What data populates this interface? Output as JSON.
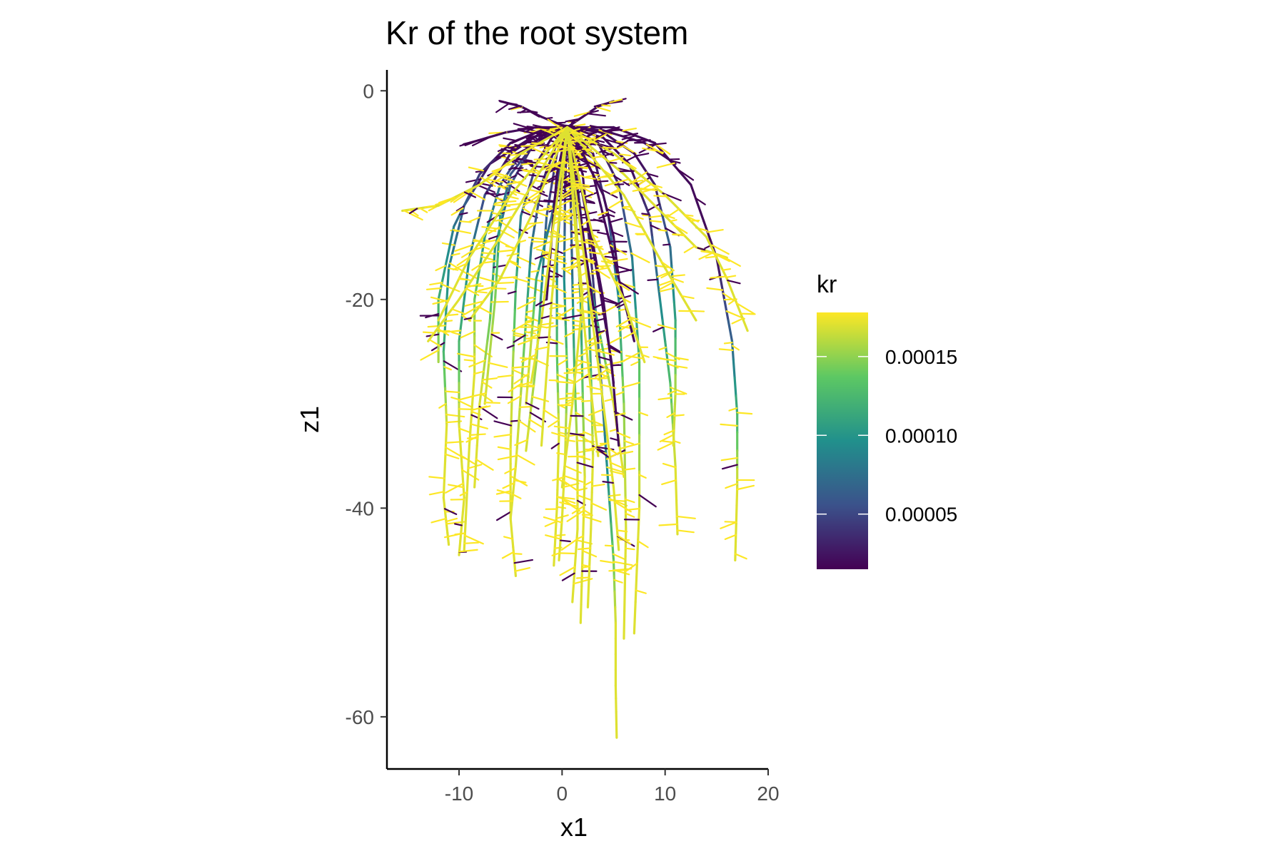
{
  "chart_data": {
    "type": "line",
    "title": "Kr of the root system",
    "xlabel": "x1",
    "ylabel": "z1",
    "xlim": [
      -17,
      20
    ],
    "ylim": [
      -65,
      2
    ],
    "x_ticks": [
      -10,
      0,
      10,
      20
    ],
    "x_tick_labels": [
      "-10",
      "0",
      "10",
      "20"
    ],
    "y_ticks": [
      0,
      -20,
      -40,
      -60
    ],
    "y_tick_labels": [
      "0",
      "-20",
      "-40",
      "-60"
    ],
    "grid": false,
    "color_scale": {
      "name": "kr",
      "palette": "viridis",
      "min": 1.5e-05,
      "max": 0.000178,
      "ticks": [
        5e-05,
        0.0001,
        0.00015
      ],
      "tick_labels": [
        "0.00005",
        "0.00010",
        "0.00015"
      ],
      "colors": [
        "#440154",
        "#3b528b",
        "#21908c",
        "#5dc863",
        "#fde725"
      ]
    },
    "legend": {
      "placement": "right",
      "title": "kr"
    },
    "series": [
      {
        "type": "primary",
        "x": [
          0.5,
          -3,
          -7,
          -9.5,
          -11,
          -11.5,
          -11.2,
          -11.5,
          -11
        ],
        "z": [
          -3.5,
          -4.5,
          -7,
          -11,
          -17,
          -25,
          -32,
          -39,
          -43.5
        ],
        "kr": [
          2e-05,
          2e-05,
          2e-05,
          6e-05,
          9e-05,
          0.00012,
          0.00017,
          0.00017,
          0.00017
        ]
      },
      {
        "type": "primary",
        "x": [
          0.5,
          -2,
          -5,
          -7.5,
          -9,
          -10,
          -10,
          -9.5,
          -10
        ],
        "z": [
          -3.5,
          -4,
          -6,
          -10,
          -16,
          -24,
          -32,
          -39,
          -44.5
        ],
        "kr": [
          2e-05,
          2e-05,
          2e-05,
          5e-05,
          9e-05,
          0.00012,
          0.00017,
          0.00017,
          0.00017
        ]
      },
      {
        "type": "primary",
        "x": [
          0.5,
          -1.5,
          -4,
          -6,
          -7.5,
          -8.5,
          -8.5,
          -9,
          -9.5
        ],
        "z": [
          -3.5,
          -4,
          -6,
          -9,
          -14,
          -20,
          -27,
          -34,
          -44
        ],
        "kr": [
          2e-05,
          2e-05,
          3e-05,
          7e-05,
          0.0001,
          0.00014,
          0.00017,
          0.00017,
          0.00017
        ]
      },
      {
        "type": "primary",
        "x": [
          0.5,
          -1,
          -3,
          -5,
          -6.5,
          -7,
          -8,
          -8.5
        ],
        "z": [
          -3.5,
          -4,
          -5.5,
          -9,
          -15,
          -22,
          -30,
          -38
        ],
        "kr": [
          2e-05,
          2e-05,
          3e-05,
          6e-05,
          0.0001,
          0.00014,
          0.00017,
          0.00017
        ]
      },
      {
        "type": "primary",
        "x": [
          0.5,
          -1,
          -2.5,
          -4,
          -4.5,
          -4.8,
          -5,
          -5,
          -4.5
        ],
        "z": [
          -3.5,
          -4.5,
          -7,
          -12,
          -19,
          -27,
          -34,
          -41,
          -46.5
        ],
        "kr": [
          2e-05,
          2e-05,
          3e-05,
          8e-05,
          0.00012,
          0.00016,
          0.00017,
          0.00017,
          0.00017
        ]
      },
      {
        "type": "primary",
        "x": [
          0.5,
          -0.5,
          -2,
          -3,
          -3.5,
          -4,
          -4.5,
          -5
        ],
        "z": [
          -3.5,
          -5,
          -9,
          -15,
          -22,
          -29,
          -36,
          -41
        ],
        "kr": [
          2e-05,
          2e-05,
          4e-05,
          8e-05,
          0.00013,
          0.00016,
          0.00017,
          0.00017
        ]
      },
      {
        "type": "primary",
        "x": [
          0.5,
          -0.5,
          -1.5,
          -2,
          -2.5,
          -3.5
        ],
        "z": [
          -3.5,
          -6,
          -12,
          -19,
          -26,
          -34.5
        ],
        "kr": [
          2e-05,
          3e-05,
          6e-05,
          0.0001,
          0.00015,
          0.00017
        ]
      },
      {
        "type": "primary",
        "x": [
          0.5,
          0,
          -0.5,
          -0.5,
          -0.3,
          -0.5,
          -0.8
        ],
        "z": [
          -3.5,
          -8,
          -16,
          -25,
          -33,
          -40,
          -45.5
        ],
        "kr": [
          2e-05,
          4e-05,
          8e-05,
          0.00013,
          0.00017,
          0.00017,
          0.00017
        ]
      },
      {
        "type": "primary",
        "x": [
          0.5,
          0.3,
          0.2,
          0.5,
          0.3,
          0,
          -0.3
        ],
        "z": [
          -3.5,
          -9,
          -18,
          -27,
          -35,
          -41,
          -45
        ],
        "kr": [
          2e-05,
          4e-05,
          9e-05,
          0.00014,
          0.00017,
          0.00017,
          0.00017
        ]
      },
      {
        "type": "primary",
        "x": [
          0.5,
          0.8,
          1,
          1.2,
          1.5,
          1.5,
          1
        ],
        "z": [
          -3.5,
          -9,
          -18,
          -27,
          -35,
          -42,
          -49
        ],
        "kr": [
          2e-05,
          4e-05,
          8e-05,
          0.00013,
          0.00017,
          0.00017,
          0.00017
        ]
      },
      {
        "type": "primary",
        "x": [
          0.5,
          1.2,
          1.8,
          2,
          2.2,
          2,
          1.8
        ],
        "z": [
          -3.5,
          -10,
          -20,
          -29,
          -37,
          -44,
          -51
        ],
        "kr": [
          2e-05,
          4e-05,
          0.0001,
          0.00014,
          0.00017,
          0.00017,
          0.00017
        ]
      },
      {
        "type": "primary",
        "x": [
          0.5,
          1.5,
          2.5,
          2.8,
          3,
          2.8,
          2.5
        ],
        "z": [
          -3.5,
          -9,
          -18,
          -27,
          -35,
          -42,
          -49.5
        ],
        "kr": [
          2e-05,
          4e-05,
          8e-05,
          0.00013,
          0.00017,
          0.00017,
          0.00017
        ]
      },
      {
        "type": "primary",
        "x": [
          0.5,
          2,
          3,
          3.8,
          4.5,
          5,
          5.2,
          5.2,
          5.3
        ],
        "z": [
          -3.5,
          -8,
          -18,
          -28,
          -38,
          -45,
          -51,
          -57,
          -62
        ],
        "kr": [
          2e-05,
          2e-05,
          4e-05,
          7e-05,
          0.0001,
          0.00014,
          0.00017,
          0.00017,
          0.00017
        ]
      },
      {
        "type": "primary",
        "x": [
          0.5,
          3,
          4.5,
          5.5,
          6,
          6.2,
          6
        ],
        "z": [
          -3.5,
          -6,
          -12,
          -20,
          -30,
          -42,
          -52.5
        ],
        "kr": [
          2e-05,
          2e-05,
          5e-05,
          0.0001,
          0.00015,
          0.00017,
          0.00017
        ]
      },
      {
        "type": "primary",
        "x": [
          0.5,
          3.5,
          5.5,
          6.8,
          7.5,
          7.5,
          7
        ],
        "z": [
          -3.5,
          -5,
          -9,
          -16,
          -26,
          -40,
          -52
        ],
        "kr": [
          2e-05,
          2e-05,
          4e-05,
          8e-05,
          0.00013,
          0.00017,
          0.00017
        ]
      },
      {
        "type": "primary",
        "x": [
          0.5,
          4,
          6.5,
          8.5,
          9.5,
          10.5,
          11,
          11.2
        ],
        "z": [
          -3.5,
          -4.5,
          -7,
          -12,
          -20,
          -28,
          -36,
          -42.5
        ],
        "kr": [
          2e-05,
          2e-05,
          2e-05,
          4e-05,
          9e-05,
          0.00013,
          0.00017,
          0.00017
        ]
      },
      {
        "type": "primary",
        "x": [
          0.5,
          4,
          7,
          9,
          10.5,
          11,
          11,
          10.8
        ],
        "z": [
          -3.5,
          -4,
          -6,
          -9,
          -15,
          -22,
          -29,
          -34
        ],
        "kr": [
          2e-05,
          2e-05,
          2e-05,
          3e-05,
          7e-05,
          0.00011,
          0.00016,
          0.00017
        ]
      },
      {
        "type": "primary",
        "x": [
          0.5,
          5,
          9,
          12.5,
          15,
          16.5,
          17,
          17,
          16.8
        ],
        "z": [
          -3.5,
          -3.5,
          -5,
          -9,
          -16,
          -24,
          -31,
          -38,
          -45
        ],
        "kr": [
          2e-05,
          2e-05,
          2e-05,
          2e-05,
          2e-05,
          7e-05,
          0.00012,
          0.00017,
          0.00017
        ]
      },
      {
        "type": "primary",
        "x": [
          0.5,
          -2,
          -5,
          -8,
          -10.5,
          -12,
          -12
        ],
        "z": [
          -3.5,
          -3.8,
          -5,
          -8,
          -13,
          -20,
          -26
        ],
        "kr": [
          2e-05,
          2e-05,
          2e-05,
          4e-05,
          8e-05,
          0.00012,
          0.00016
        ]
      },
      {
        "type": "primary",
        "x": [
          0.5,
          -1,
          -3,
          -5,
          -6,
          -6.5,
          -7.5
        ],
        "z": [
          -3.5,
          -4,
          -5.5,
          -8,
          -12,
          -20,
          -30
        ],
        "kr": [
          2e-05,
          2e-05,
          3e-05,
          6e-05,
          0.0001,
          0.00015,
          0.00017
        ]
      },
      {
        "type": "primary",
        "x": [
          0.5,
          0,
          -1,
          -2.5,
          -3,
          -3.5
        ],
        "z": [
          -3.5,
          -6,
          -12,
          -18,
          -24,
          -30
        ],
        "kr": [
          2e-05,
          3e-05,
          7e-05,
          0.00011,
          0.00016,
          0.00017
        ]
      },
      {
        "type": "primary",
        "x": [
          0.5,
          1,
          2,
          3,
          4,
          5,
          6
        ],
        "z": [
          -3.5,
          -8,
          -14,
          -20,
          -25,
          -30,
          -37
        ],
        "kr": [
          2e-05,
          2e-05,
          5e-05,
          0.0001,
          0.00014,
          0.00017,
          0.00017
        ]
      },
      {
        "type": "primary",
        "x": [
          0.5,
          2,
          3.5,
          4.8,
          5.5
        ],
        "z": [
          -3.5,
          -10,
          -18,
          -26,
          -34
        ],
        "kr": [
          2e-05,
          2e-05,
          2e-05,
          2e-05,
          2e-05
        ]
      },
      {
        "type": "primary",
        "x": [
          0.5,
          3,
          4.5,
          6,
          7
        ],
        "z": [
          -3.5,
          -8,
          -14,
          -20,
          -24
        ],
        "kr": [
          2e-05,
          2e-05,
          2e-05,
          2e-05,
          2e-05
        ]
      },
      {
        "type": "primary",
        "x": [
          0.5,
          2,
          4,
          5,
          5.5
        ],
        "z": [
          -3.5,
          -6,
          -10,
          -14,
          -18
        ],
        "kr": [
          2e-05,
          2e-05,
          2e-05,
          2e-05,
          2e-05
        ]
      },
      {
        "type": "primary",
        "x": [
          0.5,
          -0.5,
          -1,
          -1.5
        ],
        "z": [
          -3.5,
          -8,
          -14,
          -20
        ],
        "kr": [
          2e-05,
          2e-05,
          2e-05,
          2e-05
        ]
      },
      {
        "type": "primary",
        "x": [
          0.5,
          1.5,
          2.5,
          3.5
        ],
        "z": [
          -3.5,
          -10,
          -17,
          -24
        ],
        "kr": [
          2e-05,
          2e-05,
          2e-05,
          2e-05
        ]
      },
      {
        "type": "primary",
        "x": [
          0.5,
          2.5,
          4,
          5
        ],
        "z": [
          -3.5,
          -12,
          -20,
          -28
        ],
        "kr": [
          2e-05,
          2e-05,
          2e-05,
          2e-05
        ]
      },
      {
        "type": "primary",
        "x": [
          0.5,
          -2.5,
          -5.5,
          -9
        ],
        "z": [
          -3.5,
          -3.5,
          -4,
          -5
        ],
        "kr": [
          2e-05,
          2e-05,
          2e-05,
          2e-05
        ]
      },
      {
        "type": "primary",
        "x": [
          0.5,
          4,
          8,
          11
        ],
        "z": [
          -3.5,
          -3.8,
          -5,
          -7
        ],
        "kr": [
          2e-05,
          2e-05,
          2e-05,
          2e-05
        ]
      },
      {
        "type": "primary",
        "x": [
          0.5,
          -2,
          -4,
          -6
        ],
        "z": [
          -3.5,
          -2.5,
          -1.5,
          -1
        ],
        "kr": [
          2e-05,
          2e-05,
          2e-05,
          2e-05
        ]
      },
      {
        "type": "primary",
        "x": [
          0.5,
          2,
          3.5,
          5
        ],
        "z": [
          -3.5,
          -2.5,
          -1.5,
          -1
        ],
        "kr": [
          2e-05,
          2e-05,
          2e-05,
          2e-05
        ]
      },
      {
        "type": "primary",
        "x": [
          0.5,
          -4,
          -8,
          -12,
          -15.5
        ],
        "z": [
          -3.5,
          -6,
          -9,
          -11,
          -11.5
        ],
        "kr": [
          0.00017,
          0.00017,
          0.00017,
          0.00017,
          0.00017
        ]
      },
      {
        "type": "primary",
        "x": [
          0.5,
          5,
          10,
          14,
          16,
          18
        ],
        "z": [
          -3.5,
          -6,
          -10,
          -14,
          -18,
          -23
        ],
        "kr": [
          0.00017,
          0.00017,
          0.00017,
          0.00017,
          0.00017,
          0.00017
        ]
      },
      {
        "type": "primary",
        "x": [
          0.5,
          6,
          10,
          13,
          16
        ],
        "z": [
          -3.5,
          -8,
          -12,
          -15,
          -16
        ],
        "kr": [
          0.00017,
          0.00017,
          0.00017,
          0.00017,
          0.00017
        ]
      },
      {
        "type": "primary",
        "x": [
          0.5,
          -5,
          -9,
          -12
        ],
        "z": [
          -3.5,
          -10,
          -16,
          -22
        ],
        "kr": [
          0.00017,
          0.00017,
          0.00017,
          0.00017
        ]
      },
      {
        "type": "primary",
        "x": [
          0.5,
          6,
          10,
          13
        ],
        "z": [
          -3.5,
          -10,
          -17,
          -22
        ],
        "kr": [
          0.00017,
          0.00017,
          0.00017,
          0.00017
        ]
      },
      {
        "type": "primary",
        "x": [
          0.5,
          -3,
          -6,
          -9
        ],
        "z": [
          -3.5,
          -12,
          -18,
          -22
        ],
        "kr": [
          0.00017,
          0.00017,
          0.00017,
          0.00017
        ]
      },
      {
        "type": "primary",
        "x": [
          0.5,
          3,
          6,
          8
        ],
        "z": [
          -3.5,
          -14,
          -20,
          -26
        ],
        "kr": [
          0.00017,
          0.00017,
          0.00017,
          0.00017
        ]
      },
      {
        "type": "primary",
        "x": [
          0.5,
          -1,
          -2,
          -3
        ],
        "z": [
          -3.5,
          -14,
          -22,
          -28
        ],
        "kr": [
          0.00017,
          0.00017,
          0.00017,
          0.00017
        ]
      },
      {
        "type": "primary",
        "x": [
          0.5,
          1.5,
          2.5,
          3.5
        ],
        "z": [
          -3.5,
          -16,
          -26,
          -35
        ],
        "kr": [
          0.00017,
          0.00017,
          0.00017,
          0.00017
        ]
      },
      {
        "type": "primary",
        "x": [
          0.5,
          -1,
          -2
        ],
        "z": [
          -3.5,
          -20,
          -34
        ],
        "kr": [
          0.00017,
          0.00017,
          0.00017
        ]
      },
      {
        "type": "primary",
        "x": [
          0.5,
          4,
          5,
          5.5
        ],
        "z": [
          -3.5,
          -30,
          -38,
          -44
        ],
        "kr": [
          0.00017,
          0.00017,
          0.00017,
          0.00017
        ]
      },
      {
        "type": "primary",
        "x": [
          0.5,
          -6,
          -10,
          -13
        ],
        "z": [
          -3.5,
          -14,
          -20,
          -24
        ],
        "kr": [
          0.00017,
          0.00017,
          0.00017,
          0.00017
        ]
      },
      {
        "type": "primary",
        "x": [
          0.5,
          2,
          1,
          0
        ],
        "z": [
          -3.5,
          -20,
          -30,
          -38
        ],
        "kr": [
          0.00017,
          0.00017,
          0.00017,
          0.00017
        ]
      }
    ]
  }
}
